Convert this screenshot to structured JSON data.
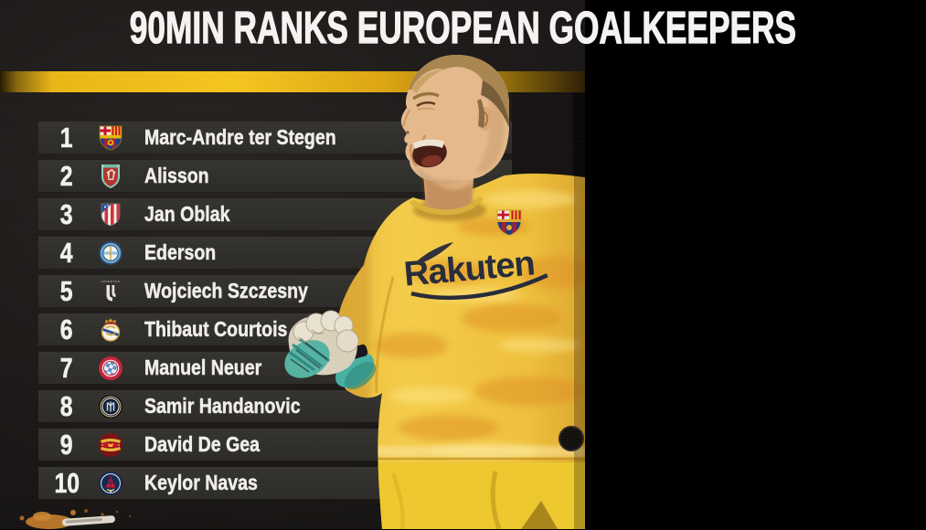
{
  "title": "90MIN RANKS EUROPEAN GOALKEEPERS",
  "colors": {
    "accent_gold": "#f0b816",
    "row_background": "#323029",
    "page_background": "#1b1817",
    "text": "#f2f0ee"
  },
  "ranking": [
    {
      "rank": "1",
      "name": "Marc-Andre ter Stegen",
      "badge": "fc-barcelona-crest"
    },
    {
      "rank": "2",
      "name": "Alisson",
      "badge": "liverpool-crest"
    },
    {
      "rank": "3",
      "name": "Jan Oblak",
      "badge": "atletico-madrid-crest"
    },
    {
      "rank": "4",
      "name": "Ederson",
      "badge": "manchester-city-crest"
    },
    {
      "rank": "5",
      "name": "Wojciech Szczesny",
      "badge": "juventus-crest"
    },
    {
      "rank": "6",
      "name": "Thibaut Courtois",
      "badge": "real-madrid-crest"
    },
    {
      "rank": "7",
      "name": "Manuel Neuer",
      "badge": "bayern-munich-crest"
    },
    {
      "rank": "8",
      "name": "Samir Handanovic",
      "badge": "inter-milan-crest"
    },
    {
      "rank": "9",
      "name": "David De Gea",
      "badge": "manchester-united-crest"
    },
    {
      "rank": "10",
      "name": "Keylor Navas",
      "badge": "paris-saint-germain-crest"
    }
  ],
  "badges": {
    "juventus_wordmark": "JUVENTUS"
  },
  "player_photo": {
    "jersey_sponsor": "Rakuten"
  }
}
